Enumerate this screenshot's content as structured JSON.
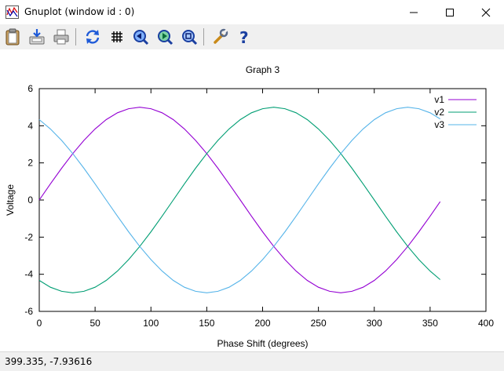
{
  "window": {
    "title": "Gnuplot (window id : 0)",
    "icon": "gnuplot-app-icon",
    "controls": [
      "minimize-icon",
      "maximize-icon",
      "close-icon"
    ]
  },
  "toolbar": {
    "buttons": [
      {
        "name": "copy-to-clipboard",
        "icon": "clipboard-icon"
      },
      {
        "name": "save",
        "icon": "save-icon"
      },
      {
        "name": "print",
        "icon": "printer-icon"
      },
      {
        "name": "replot",
        "icon": "replot-icon"
      },
      {
        "name": "grid",
        "icon": "grid-icon"
      },
      {
        "name": "previous-zoom",
        "icon": "zoom-previous-icon"
      },
      {
        "name": "next-zoom",
        "icon": "zoom-next-icon"
      },
      {
        "name": "unzoom",
        "icon": "unzoom-icon"
      },
      {
        "name": "options",
        "icon": "wrench-icon"
      },
      {
        "name": "help",
        "icon": "help-icon"
      }
    ]
  },
  "chart_data": {
    "type": "line",
    "title": "Graph 3",
    "xlabel": "Phase Shift (degrees)",
    "ylabel": "Voltage",
    "xlim": [
      0,
      400
    ],
    "ylim": [
      -6,
      6
    ],
    "xticks": [
      0,
      50,
      100,
      150,
      200,
      250,
      300,
      350,
      400
    ],
    "yticks": [
      -6,
      -4,
      -2,
      0,
      2,
      4,
      6
    ],
    "grid": false,
    "legend": "top-right",
    "x": [
      0,
      10,
      20,
      30,
      40,
      50,
      60,
      70,
      80,
      90,
      100,
      110,
      120,
      130,
      140,
      150,
      160,
      170,
      180,
      190,
      200,
      210,
      220,
      230,
      240,
      250,
      260,
      270,
      280,
      290,
      300,
      310,
      320,
      330,
      340,
      350,
      359
    ],
    "series": [
      {
        "name": "v1",
        "color": "#9400d3",
        "values": [
          0,
          0.87,
          1.71,
          2.5,
          3.21,
          3.83,
          4.33,
          4.7,
          4.92,
          5,
          4.92,
          4.7,
          4.33,
          3.83,
          3.21,
          2.5,
          1.71,
          0.87,
          0,
          -0.87,
          -1.71,
          -2.5,
          -3.21,
          -3.83,
          -4.33,
          -4.7,
          -4.92,
          -5,
          -4.92,
          -4.7,
          -4.33,
          -3.83,
          -3.21,
          -2.5,
          -1.71,
          -0.87,
          -0.09
        ]
      },
      {
        "name": "v2",
        "color": "#009e73",
        "values": [
          -4.33,
          -4.7,
          -4.92,
          -5,
          -4.92,
          -4.7,
          -4.33,
          -3.83,
          -3.21,
          -2.5,
          -1.71,
          -0.87,
          0,
          0.87,
          1.71,
          2.5,
          3.21,
          3.83,
          4.33,
          4.7,
          4.92,
          5,
          4.92,
          4.7,
          4.33,
          3.83,
          3.21,
          2.5,
          1.71,
          0.87,
          0,
          -0.87,
          -1.71,
          -2.5,
          -3.21,
          -3.83,
          -4.29
        ]
      },
      {
        "name": "v3",
        "color": "#56b4e9",
        "values": [
          4.33,
          3.83,
          3.21,
          2.5,
          1.71,
          0.87,
          0,
          -0.87,
          -1.71,
          -2.5,
          -3.21,
          -3.83,
          -4.33,
          -4.7,
          -4.92,
          -5,
          -4.92,
          -4.7,
          -4.33,
          -3.83,
          -3.21,
          -2.5,
          -1.71,
          -0.87,
          0,
          0.87,
          1.71,
          2.5,
          3.21,
          3.83,
          4.33,
          4.7,
          4.92,
          5,
          4.92,
          4.7,
          4.37
        ]
      }
    ]
  },
  "status": {
    "coordinates": "399.335, -7.93616"
  }
}
